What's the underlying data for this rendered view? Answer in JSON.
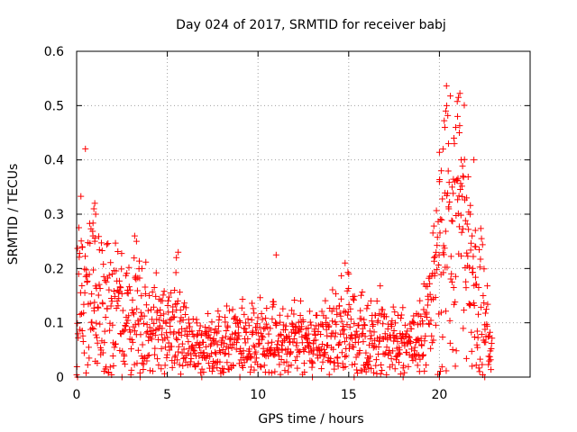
{
  "chart_data": {
    "type": "scatter",
    "title": "Day 024 of 2017, SRMTID for receiver babj",
    "xlabel": "GPS time / hours",
    "ylabel": "SRMTID / TECUs",
    "xlim": [
      0,
      25
    ],
    "ylim": [
      0,
      0.6
    ],
    "xticks": [
      0,
      5,
      10,
      15,
      20
    ],
    "xtick_labels": [
      "0",
      "5",
      "10",
      "15",
      "20"
    ],
    "yticks": [
      0,
      0.1,
      0.2,
      0.3,
      0.4,
      0.5,
      0.6
    ],
    "ytick_labels": [
      "0",
      "0.1",
      "0.2",
      "0.3",
      "0.4",
      "0.5",
      "0.6"
    ],
    "grid": true,
    "marker": "+",
    "series": [
      {
        "name": "SRMTID",
        "color": "#ff0000",
        "profile_x": [
          0,
          0.2,
          0.5,
          1.0,
          1.5,
          2.0,
          3.0,
          3.5,
          4.0,
          5.0,
          5.5,
          6.0,
          6.5,
          7.0,
          8.0,
          9.0,
          10.0,
          11.0,
          12.0,
          13.0,
          14.0,
          14.5,
          15.0,
          15.5,
          16.0,
          17.0,
          18.0,
          18.6,
          19.0,
          19.5,
          20.0,
          20.3,
          20.6,
          21.0,
          21.4,
          21.8,
          22.2,
          22.6,
          22.9
        ],
        "profile_y": [
          0.17,
          0.19,
          0.17,
          0.15,
          0.13,
          0.12,
          0.11,
          0.11,
          0.09,
          0.08,
          0.09,
          0.07,
          0.06,
          0.055,
          0.06,
          0.065,
          0.07,
          0.07,
          0.065,
          0.06,
          0.065,
          0.08,
          0.085,
          0.08,
          0.075,
          0.07,
          0.06,
          0.055,
          0.07,
          0.12,
          0.22,
          0.28,
          0.26,
          0.28,
          0.22,
          0.2,
          0.15,
          0.08,
          0.05
        ],
        "highlights": [
          {
            "x": 1.0,
            "y": 0.32
          },
          {
            "x": 0.95,
            "y": 0.31
          },
          {
            "x": 1.05,
            "y": 0.3
          },
          {
            "x": 0.9,
            "y": 0.26
          },
          {
            "x": 1.0,
            "y": 0.25
          },
          {
            "x": 0.3,
            "y": 0.24
          },
          {
            "x": 3.2,
            "y": 0.26
          },
          {
            "x": 3.3,
            "y": 0.25
          },
          {
            "x": 3.6,
            "y": 0.2
          },
          {
            "x": 5.6,
            "y": 0.23
          },
          {
            "x": 5.5,
            "y": 0.22
          },
          {
            "x": 5.4,
            "y": 0.16
          },
          {
            "x": 11.0,
            "y": 0.225
          },
          {
            "x": 14.8,
            "y": 0.21
          },
          {
            "x": 15.0,
            "y": 0.19
          },
          {
            "x": 20.0,
            "y": 0.36
          },
          {
            "x": 20.1,
            "y": 0.38
          },
          {
            "x": 20.2,
            "y": 0.42
          },
          {
            "x": 20.3,
            "y": 0.46
          },
          {
            "x": 20.35,
            "y": 0.49
          },
          {
            "x": 20.4,
            "y": 0.5
          },
          {
            "x": 20.5,
            "y": 0.43
          },
          {
            "x": 20.7,
            "y": 0.35
          },
          {
            "x": 20.8,
            "y": 0.44
          },
          {
            "x": 20.9,
            "y": 0.46
          },
          {
            "x": 21.0,
            "y": 0.48
          },
          {
            "x": 21.05,
            "y": 0.515
          },
          {
            "x": 21.1,
            "y": 0.45
          },
          {
            "x": 21.2,
            "y": 0.4
          },
          {
            "x": 21.3,
            "y": 0.37
          },
          {
            "x": 21.5,
            "y": 0.33
          },
          {
            "x": 21.7,
            "y": 0.3
          },
          {
            "x": 21.8,
            "y": 0.26
          },
          {
            "x": 21.9,
            "y": 0.4
          },
          {
            "x": 22.0,
            "y": 0.24
          },
          {
            "x": 19.7,
            "y": 0.22
          },
          {
            "x": 0.05,
            "y": 0.0
          },
          {
            "x": 2.5,
            "y": 0.0
          },
          {
            "x": 3.5,
            "y": 0.0
          },
          {
            "x": 6.9,
            "y": 0.0
          },
          {
            "x": 9.0,
            "y": 0.0
          },
          {
            "x": 13.0,
            "y": 0.0
          },
          {
            "x": 15.3,
            "y": 0.0
          },
          {
            "x": 18.0,
            "y": 0.0
          },
          {
            "x": 20.0,
            "y": 0.0
          },
          {
            "x": 22.5,
            "y": 0.0
          }
        ]
      }
    ]
  }
}
